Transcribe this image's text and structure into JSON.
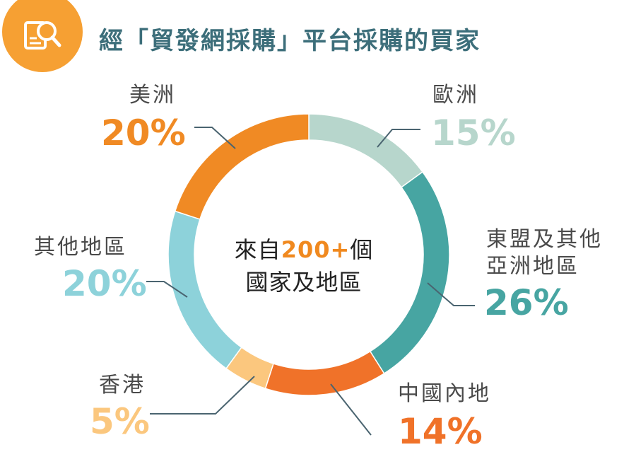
{
  "title": "經「貿發網採購」平台採購的買家",
  "header_icon": "search-document-icon",
  "center": {
    "line1_prefix": "來自",
    "line1_highlight": "200+",
    "line1_suffix": "個",
    "line2": "國家及地區"
  },
  "colors": {
    "title": "#3c6e7a",
    "badge": "#f6a033",
    "highlight": "#f0891f"
  },
  "chart_data": {
    "type": "pie",
    "variant": "donut",
    "title": "經「貿發網採購」平台採購的買家",
    "start_angle_deg": 0,
    "direction": "clockwise",
    "slices": [
      {
        "label": "歐洲",
        "value": 15,
        "display": "15%",
        "color": "#b7d6cc",
        "label_color": "#b7d6cc"
      },
      {
        "label": "東盟及其他亞洲地區",
        "value": 26,
        "display": "26%",
        "color": "#47a5a2",
        "label_color": "#47a5a2"
      },
      {
        "label": "中國內地",
        "value": 14,
        "display": "14%",
        "color": "#f07229",
        "label_color": "#f07229"
      },
      {
        "label": "香港",
        "value": 5,
        "display": "5%",
        "color": "#fbc77e",
        "label_color": "#fbc77e"
      },
      {
        "label": "其他地區",
        "value": 20,
        "display": "20%",
        "color": "#8dd2da",
        "label_color": "#8dd2da"
      },
      {
        "label": "美洲",
        "value": 20,
        "display": "20%",
        "color": "#f08a24",
        "label_color": "#f08a24"
      }
    ]
  }
}
